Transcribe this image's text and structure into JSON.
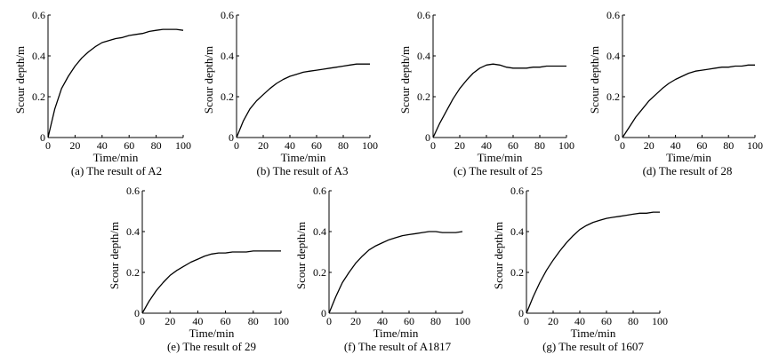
{
  "chart_data": [
    {
      "type": "line",
      "caption": "(a) The result of A2",
      "xlabel": "Time/min",
      "ylabel": "Scour depth/m",
      "xlim": [
        0,
        100
      ],
      "ylim": [
        0,
        0.6
      ],
      "xticks": [
        "0",
        "20",
        "40",
        "60",
        "80",
        "100"
      ],
      "yticks": [
        "0",
        "0.2",
        "0.4",
        "0.6"
      ],
      "grid": false,
      "series": [
        {
          "x": [
            0,
            5,
            10,
            15,
            20,
            25,
            30,
            35,
            40,
            45,
            50,
            55,
            60,
            65,
            70,
            75,
            80,
            85,
            90,
            95,
            100
          ],
          "y": [
            0,
            0.14,
            0.24,
            0.3,
            0.35,
            0.39,
            0.42,
            0.445,
            0.465,
            0.475,
            0.485,
            0.49,
            0.5,
            0.505,
            0.51,
            0.52,
            0.525,
            0.53,
            0.53,
            0.53,
            0.525
          ]
        }
      ]
    },
    {
      "type": "line",
      "caption": "(b) The result of A3",
      "xlabel": "Time/min",
      "ylabel": "Scour depth/m",
      "xlim": [
        0,
        100
      ],
      "ylim": [
        0,
        0.6
      ],
      "xticks": [
        "0",
        "20",
        "40",
        "60",
        "80",
        "100"
      ],
      "yticks": [
        "0",
        "0.2",
        "0.4",
        "0.6"
      ],
      "grid": false,
      "series": [
        {
          "x": [
            0,
            5,
            10,
            15,
            20,
            25,
            30,
            35,
            40,
            45,
            50,
            55,
            60,
            65,
            70,
            75,
            80,
            85,
            90,
            95,
            100
          ],
          "y": [
            0,
            0.08,
            0.14,
            0.18,
            0.21,
            0.24,
            0.265,
            0.285,
            0.3,
            0.31,
            0.32,
            0.325,
            0.33,
            0.335,
            0.34,
            0.345,
            0.35,
            0.355,
            0.36,
            0.36,
            0.36
          ]
        }
      ]
    },
    {
      "type": "line",
      "caption": "(c) The result of 25",
      "xlabel": "Time/min",
      "ylabel": "Scour depth/m",
      "xlim": [
        0,
        100
      ],
      "ylim": [
        0,
        0.6
      ],
      "xticks": [
        "0",
        "20",
        "40",
        "60",
        "80",
        "100"
      ],
      "yticks": [
        "0",
        "0.2",
        "0.4",
        "0.6"
      ],
      "grid": false,
      "series": [
        {
          "x": [
            0,
            5,
            10,
            15,
            20,
            25,
            30,
            35,
            40,
            45,
            50,
            55,
            60,
            65,
            70,
            75,
            80,
            85,
            90,
            95,
            100
          ],
          "y": [
            0,
            0.07,
            0.13,
            0.19,
            0.24,
            0.28,
            0.315,
            0.34,
            0.355,
            0.36,
            0.355,
            0.345,
            0.34,
            0.34,
            0.34,
            0.345,
            0.345,
            0.35,
            0.35,
            0.35,
            0.35
          ]
        }
      ]
    },
    {
      "type": "line",
      "caption": "(d) The result of 28",
      "xlabel": "Time/min",
      "ylabel": "Scour depth/m",
      "xlim": [
        0,
        100
      ],
      "ylim": [
        0,
        0.6
      ],
      "xticks": [
        "0",
        "20",
        "40",
        "60",
        "80",
        "100"
      ],
      "yticks": [
        "0",
        "0.2",
        "0.4",
        "0.6"
      ],
      "grid": false,
      "series": [
        {
          "x": [
            0,
            5,
            10,
            15,
            20,
            25,
            30,
            35,
            40,
            45,
            50,
            55,
            60,
            65,
            70,
            75,
            80,
            85,
            90,
            95,
            100
          ],
          "y": [
            0,
            0.05,
            0.1,
            0.14,
            0.18,
            0.21,
            0.24,
            0.265,
            0.285,
            0.3,
            0.315,
            0.325,
            0.33,
            0.335,
            0.34,
            0.345,
            0.345,
            0.35,
            0.35,
            0.355,
            0.355
          ]
        }
      ]
    },
    {
      "type": "line",
      "caption": "(e) The result of 29",
      "xlabel": "Time/min",
      "ylabel": "Scour depth/m",
      "xlim": [
        0,
        100
      ],
      "ylim": [
        0,
        0.6
      ],
      "xticks": [
        "0",
        "20",
        "40",
        "60",
        "80",
        "100"
      ],
      "yticks": [
        "0",
        "0.2",
        "0.4",
        "0.6"
      ],
      "grid": false,
      "series": [
        {
          "x": [
            0,
            5,
            10,
            15,
            20,
            25,
            30,
            35,
            40,
            45,
            50,
            55,
            60,
            65,
            70,
            75,
            80,
            85,
            90,
            95,
            100
          ],
          "y": [
            0,
            0.06,
            0.11,
            0.15,
            0.185,
            0.21,
            0.23,
            0.25,
            0.265,
            0.28,
            0.29,
            0.295,
            0.295,
            0.3,
            0.3,
            0.3,
            0.305,
            0.305,
            0.305,
            0.305,
            0.305
          ]
        }
      ]
    },
    {
      "type": "line",
      "caption": "(f) The result of A1817",
      "xlabel": "Time/min",
      "ylabel": "Scour depth/m",
      "xlim": [
        0,
        100
      ],
      "ylim": [
        0,
        0.6
      ],
      "xticks": [
        "0",
        "20",
        "40",
        "60",
        "80",
        "100"
      ],
      "yticks": [
        "0",
        "0.2",
        "0.4",
        "0.6"
      ],
      "grid": false,
      "series": [
        {
          "x": [
            0,
            5,
            10,
            15,
            20,
            25,
            30,
            35,
            40,
            45,
            50,
            55,
            60,
            65,
            70,
            75,
            80,
            85,
            90,
            95,
            100
          ],
          "y": [
            0,
            0.08,
            0.15,
            0.2,
            0.245,
            0.28,
            0.31,
            0.33,
            0.345,
            0.36,
            0.37,
            0.38,
            0.385,
            0.39,
            0.395,
            0.4,
            0.4,
            0.395,
            0.395,
            0.395,
            0.4
          ]
        }
      ]
    },
    {
      "type": "line",
      "caption": "(g) The result of 1607",
      "xlabel": "Time/min",
      "ylabel": "Scour depth/m",
      "xlim": [
        0,
        100
      ],
      "ylim": [
        0,
        0.6
      ],
      "xticks": [
        "0",
        "20",
        "40",
        "60",
        "80",
        "100"
      ],
      "yticks": [
        "0",
        "0.2",
        "0.4",
        "0.6"
      ],
      "grid": false,
      "series": [
        {
          "x": [
            0,
            5,
            10,
            15,
            20,
            25,
            30,
            35,
            40,
            45,
            50,
            55,
            60,
            65,
            70,
            75,
            80,
            85,
            90,
            95,
            100
          ],
          "y": [
            0,
            0.08,
            0.15,
            0.21,
            0.26,
            0.305,
            0.345,
            0.38,
            0.41,
            0.43,
            0.445,
            0.455,
            0.465,
            0.47,
            0.475,
            0.48,
            0.485,
            0.49,
            0.49,
            0.495,
            0.495
          ]
        }
      ]
    }
  ]
}
